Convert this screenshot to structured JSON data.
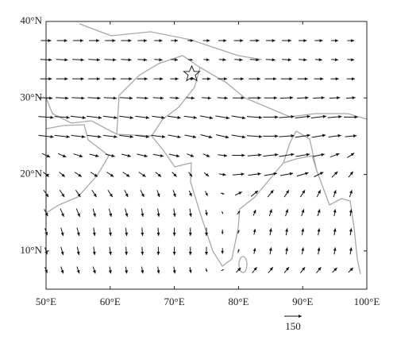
{
  "chart_data": {
    "type": "quiver",
    "xlim": [
      50,
      100
    ],
    "ylim": [
      5,
      40
    ],
    "xticks": [
      {
        "value": 50,
        "label": "50°E"
      },
      {
        "value": 60,
        "label": "60°E"
      },
      {
        "value": 70,
        "label": "70°E"
      },
      {
        "value": 80,
        "label": "80°E"
      },
      {
        "value": 90,
        "label": "90°E"
      },
      {
        "value": 100,
        "label": "100°E"
      }
    ],
    "yticks": [
      {
        "value": 10,
        "label": "10°N"
      },
      {
        "value": 20,
        "label": "20°N"
      },
      {
        "value": 30,
        "label": "30°N"
      },
      {
        "value": 40,
        "label": "40°N"
      }
    ],
    "reference_vector": 150,
    "color": "#111111",
    "lons": [
      50,
      52.5,
      55,
      57.5,
      60,
      62.5,
      65,
      67.5,
      70,
      72.5,
      75,
      77.5,
      80,
      82.5,
      85,
      87.5,
      90,
      92.5,
      95,
      97.5
    ],
    "lats": [
      37.5,
      35,
      32.5,
      30,
      27.5,
      25,
      22.5,
      20,
      17.5,
      15,
      12.5,
      10,
      7.5
    ],
    "u": [
      [
        90,
        90,
        90,
        90,
        90,
        90,
        80,
        70,
        60,
        50,
        60,
        70,
        80,
        80,
        80,
        80,
        70,
        70,
        60,
        60
      ],
      [
        100,
        100,
        100,
        100,
        100,
        90,
        80,
        70,
        60,
        40,
        50,
        60,
        70,
        80,
        80,
        80,
        70,
        60,
        60,
        60
      ],
      [
        100,
        100,
        100,
        100,
        100,
        100,
        90,
        80,
        70,
        60,
        70,
        80,
        90,
        100,
        100,
        100,
        90,
        80,
        70,
        70
      ],
      [
        110,
        110,
        110,
        110,
        110,
        110,
        100,
        90,
        80,
        70,
        80,
        90,
        100,
        110,
        110,
        110,
        100,
        100,
        90,
        80
      ],
      [
        130,
        130,
        130,
        130,
        120,
        120,
        120,
        110,
        110,
        110,
        110,
        120,
        120,
        130,
        130,
        130,
        130,
        130,
        120,
        120
      ],
      [
        130,
        130,
        120,
        120,
        120,
        120,
        120,
        120,
        110,
        100,
        100,
        110,
        120,
        130,
        130,
        130,
        130,
        120,
        110,
        100
      ],
      [
        70,
        70,
        80,
        80,
        80,
        80,
        90,
        90,
        90,
        60,
        60,
        80,
        110,
        120,
        130,
        130,
        120,
        100,
        80,
        60
      ],
      [
        50,
        50,
        60,
        60,
        60,
        60,
        60,
        50,
        40,
        30,
        40,
        60,
        100,
        110,
        110,
        110,
        100,
        80,
        50,
        40
      ],
      [
        40,
        40,
        40,
        40,
        40,
        30,
        30,
        20,
        20,
        20,
        20,
        30,
        60,
        60,
        50,
        40,
        40,
        30,
        20,
        20
      ],
      [
        30,
        30,
        30,
        20,
        20,
        20,
        10,
        10,
        10,
        10,
        10,
        10,
        20,
        20,
        20,
        20,
        20,
        20,
        10,
        10
      ],
      [
        20,
        20,
        20,
        10,
        10,
        10,
        5,
        5,
        0,
        0,
        0,
        0,
        10,
        10,
        10,
        10,
        10,
        10,
        10,
        10
      ],
      [
        20,
        20,
        15,
        10,
        10,
        5,
        5,
        0,
        0,
        0,
        0,
        0,
        10,
        10,
        10,
        10,
        10,
        10,
        10,
        10
      ],
      [
        20,
        20,
        20,
        20,
        10,
        10,
        10,
        10,
        10,
        10,
        10,
        20,
        40,
        40,
        40,
        40,
        40,
        40,
        40,
        40
      ]
    ],
    "v": [
      [
        0,
        0,
        0,
        0,
        0,
        0,
        0,
        0,
        0,
        0,
        0,
        0,
        0,
        0,
        0,
        0,
        0,
        0,
        0,
        0
      ],
      [
        -5,
        -5,
        -5,
        -5,
        -5,
        -5,
        -5,
        -5,
        -5,
        -5,
        -5,
        -5,
        -5,
        -5,
        -5,
        -5,
        -5,
        -5,
        -5,
        -5
      ],
      [
        0,
        0,
        0,
        0,
        0,
        0,
        0,
        0,
        0,
        0,
        0,
        0,
        0,
        0,
        0,
        0,
        0,
        0,
        0,
        0
      ],
      [
        -5,
        -5,
        -5,
        -5,
        -5,
        -5,
        -5,
        -5,
        -5,
        -5,
        -5,
        -5,
        0,
        0,
        0,
        5,
        5,
        5,
        5,
        5
      ],
      [
        -10,
        -10,
        -15,
        -15,
        -15,
        -15,
        -15,
        -15,
        -15,
        -15,
        -20,
        -20,
        -20,
        -10,
        0,
        10,
        15,
        15,
        10,
        0
      ],
      [
        -15,
        -15,
        -15,
        -15,
        -15,
        -15,
        -15,
        -15,
        -20,
        -20,
        -25,
        -25,
        -20,
        -10,
        0,
        10,
        20,
        20,
        15,
        10
      ],
      [
        -30,
        -30,
        -25,
        -20,
        -20,
        -20,
        -20,
        -15,
        -20,
        -25,
        -25,
        -10,
        0,
        10,
        15,
        20,
        20,
        20,
        30,
        40
      ],
      [
        -40,
        -40,
        -40,
        -40,
        -40,
        -40,
        -40,
        -40,
        -40,
        -40,
        -30,
        -10,
        10,
        15,
        20,
        20,
        30,
        40,
        50,
        50
      ],
      [
        -60,
        -60,
        -60,
        -60,
        -60,
        -60,
        -60,
        -60,
        -60,
        -50,
        -40,
        -10,
        30,
        50,
        60,
        60,
        60,
        60,
        60,
        60
      ],
      [
        -60,
        -70,
        -70,
        -70,
        -70,
        -70,
        -70,
        -70,
        -70,
        -70,
        -50,
        -20,
        30,
        50,
        60,
        60,
        60,
        60,
        60,
        60
      ],
      [
        -60,
        -70,
        -70,
        -70,
        -70,
        -70,
        -70,
        -70,
        -70,
        -70,
        -70,
        -40,
        30,
        50,
        60,
        60,
        60,
        60,
        60,
        60
      ],
      [
        -60,
        -70,
        -70,
        -70,
        -70,
        -70,
        -70,
        -70,
        -70,
        -70,
        -70,
        -50,
        30,
        50,
        60,
        60,
        60,
        60,
        60,
        60
      ],
      [
        -50,
        -60,
        -60,
        -60,
        -60,
        -60,
        -60,
        -60,
        -60,
        -50,
        -30,
        10,
        40,
        50,
        50,
        50,
        50,
        50,
        40,
        40
      ]
    ]
  }
}
